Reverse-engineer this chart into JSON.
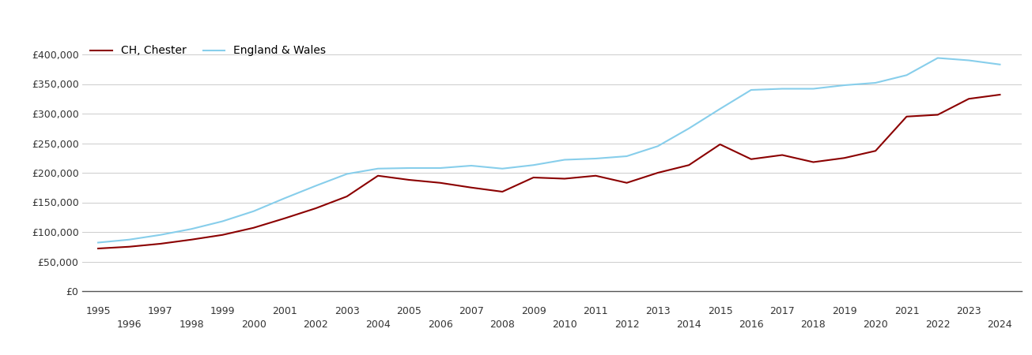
{
  "ch_chester_color": "#8B0000",
  "england_wales_color": "#87CEEB",
  "background_color": "#ffffff",
  "legend_labels": [
    "CH, Chester",
    "England & Wales"
  ],
  "years": [
    1995,
    1996,
    1997,
    1998,
    1999,
    2000,
    2001,
    2002,
    2003,
    2004,
    2005,
    2006,
    2007,
    2008,
    2009,
    2010,
    2011,
    2012,
    2013,
    2014,
    2015,
    2016,
    2017,
    2018,
    2019,
    2020,
    2021,
    2022,
    2023,
    2024
  ],
  "ch_chester": [
    72000,
    75000,
    80000,
    87000,
    95000,
    107000,
    123000,
    140000,
    160000,
    195000,
    188000,
    183000,
    175000,
    168000,
    192000,
    190000,
    195000,
    183000,
    200000,
    213000,
    248000,
    223000,
    230000,
    218000,
    225000,
    237000,
    295000,
    298000,
    325000,
    332000
  ],
  "england_wales": [
    82000,
    87000,
    95000,
    105000,
    118000,
    135000,
    157000,
    178000,
    198000,
    207000,
    208000,
    208000,
    212000,
    207000,
    213000,
    222000,
    224000,
    228000,
    245000,
    275000,
    308000,
    340000,
    342000,
    342000,
    348000,
    352000,
    365000,
    394000,
    390000,
    383000
  ],
  "ylim": [
    0,
    420000
  ],
  "yticks": [
    0,
    50000,
    100000,
    150000,
    200000,
    250000,
    300000,
    350000,
    400000
  ],
  "xlim": [
    1994.5,
    2024.7
  ],
  "grid_color": "#cccccc",
  "line_width": 1.5,
  "legend_fontsize": 10,
  "tick_fontsize": 9
}
